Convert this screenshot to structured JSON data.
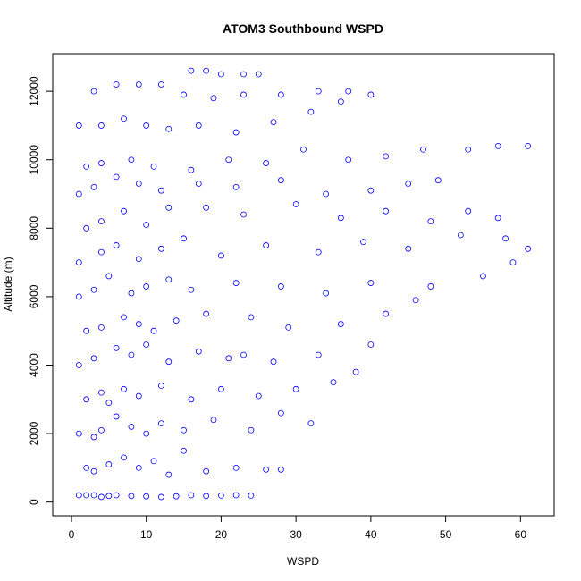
{
  "chart_data": {
    "type": "scatter",
    "title": "ATOM3 Southbound WSPD",
    "xlabel": "WSPD",
    "ylabel": "Altitude (m)",
    "xlim": [
      -2.5,
      64.5
    ],
    "ylim": [
      -400,
      13100
    ],
    "xticks": [
      0,
      10,
      20,
      30,
      40,
      50,
      60
    ],
    "yticks": [
      0,
      2000,
      4000,
      6000,
      8000,
      10000,
      12000
    ],
    "grid": false,
    "marker": "open-circle",
    "color": "#0000ff",
    "series": [
      {
        "values_note": "",
        "points": [
          [
            1,
            200
          ],
          [
            2,
            200
          ],
          [
            3,
            200
          ],
          [
            4,
            150
          ],
          [
            5,
            180
          ],
          [
            6,
            200
          ],
          [
            8,
            180
          ],
          [
            10,
            170
          ],
          [
            12,
            150
          ],
          [
            14,
            170
          ],
          [
            16,
            200
          ],
          [
            18,
            180
          ],
          [
            20,
            190
          ],
          [
            22,
            200
          ],
          [
            24,
            190
          ],
          [
            2,
            1000
          ],
          [
            3,
            900
          ],
          [
            5,
            1100
          ],
          [
            7,
            1300
          ],
          [
            9,
            1000
          ],
          [
            11,
            1200
          ],
          [
            13,
            800
          ],
          [
            15,
            1500
          ],
          [
            18,
            900
          ],
          [
            22,
            1000
          ],
          [
            26,
            950
          ],
          [
            28,
            950
          ],
          [
            1,
            2000
          ],
          [
            3,
            1900
          ],
          [
            4,
            2100
          ],
          [
            6,
            2500
          ],
          [
            8,
            2200
          ],
          [
            10,
            2000
          ],
          [
            12,
            2300
          ],
          [
            15,
            2100
          ],
          [
            19,
            2400
          ],
          [
            24,
            2100
          ],
          [
            28,
            2600
          ],
          [
            32,
            2300
          ],
          [
            2,
            3000
          ],
          [
            4,
            3200
          ],
          [
            5,
            2900
          ],
          [
            7,
            3300
          ],
          [
            9,
            3100
          ],
          [
            12,
            3400
          ],
          [
            16,
            3000
          ],
          [
            20,
            3300
          ],
          [
            25,
            3100
          ],
          [
            30,
            3300
          ],
          [
            35,
            3500
          ],
          [
            38,
            3800
          ],
          [
            1,
            4000
          ],
          [
            3,
            4200
          ],
          [
            6,
            4500
          ],
          [
            8,
            4300
          ],
          [
            10,
            4600
          ],
          [
            13,
            4100
          ],
          [
            17,
            4400
          ],
          [
            21,
            4200
          ],
          [
            23,
            4300
          ],
          [
            27,
            4100
          ],
          [
            33,
            4300
          ],
          [
            40,
            4600
          ],
          [
            2,
            5000
          ],
          [
            4,
            5100
          ],
          [
            7,
            5400
          ],
          [
            9,
            5200
          ],
          [
            11,
            5000
          ],
          [
            14,
            5300
          ],
          [
            18,
            5500
          ],
          [
            24,
            5400
          ],
          [
            29,
            5100
          ],
          [
            36,
            5200
          ],
          [
            42,
            5500
          ],
          [
            46,
            5900
          ],
          [
            1,
            6000
          ],
          [
            3,
            6200
          ],
          [
            5,
            6600
          ],
          [
            8,
            6100
          ],
          [
            10,
            6300
          ],
          [
            13,
            6500
          ],
          [
            16,
            6200
          ],
          [
            22,
            6400
          ],
          [
            28,
            6300
          ],
          [
            34,
            6100
          ],
          [
            40,
            6400
          ],
          [
            48,
            6300
          ],
          [
            55,
            6600
          ],
          [
            59,
            7000
          ],
          [
            1,
            7000
          ],
          [
            4,
            7300
          ],
          [
            6,
            7500
          ],
          [
            9,
            7100
          ],
          [
            12,
            7400
          ],
          [
            15,
            7700
          ],
          [
            20,
            7200
          ],
          [
            26,
            7500
          ],
          [
            33,
            7300
          ],
          [
            39,
            7600
          ],
          [
            45,
            7400
          ],
          [
            52,
            7800
          ],
          [
            58,
            7700
          ],
          [
            61,
            7400
          ],
          [
            2,
            8000
          ],
          [
            4,
            8200
          ],
          [
            7,
            8500
          ],
          [
            10,
            8100
          ],
          [
            13,
            8600
          ],
          [
            18,
            8600
          ],
          [
            23,
            8400
          ],
          [
            30,
            8700
          ],
          [
            36,
            8300
          ],
          [
            42,
            8500
          ],
          [
            48,
            8200
          ],
          [
            53,
            8500
          ],
          [
            57,
            8300
          ],
          [
            1,
            9000
          ],
          [
            3,
            9200
          ],
          [
            6,
            9500
          ],
          [
            9,
            9300
          ],
          [
            12,
            9100
          ],
          [
            17,
            9300
          ],
          [
            22,
            9200
          ],
          [
            28,
            9400
          ],
          [
            34,
            9000
          ],
          [
            40,
            9100
          ],
          [
            45,
            9300
          ],
          [
            49,
            9400
          ],
          [
            2,
            9800
          ],
          [
            4,
            9900
          ],
          [
            8,
            10000
          ],
          [
            11,
            9800
          ],
          [
            16,
            9700
          ],
          [
            21,
            10000
          ],
          [
            26,
            9900
          ],
          [
            31,
            10300
          ],
          [
            37,
            10000
          ],
          [
            42,
            10100
          ],
          [
            47,
            10300
          ],
          [
            53,
            10300
          ],
          [
            57,
            10400
          ],
          [
            61,
            10400
          ],
          [
            1,
            11000
          ],
          [
            4,
            11000
          ],
          [
            7,
            11200
          ],
          [
            10,
            11000
          ],
          [
            13,
            10900
          ],
          [
            17,
            11000
          ],
          [
            22,
            10800
          ],
          [
            27,
            11100
          ],
          [
            32,
            11400
          ],
          [
            36,
            11700
          ],
          [
            3,
            12000
          ],
          [
            6,
            12200
          ],
          [
            9,
            12200
          ],
          [
            12,
            12200
          ],
          [
            15,
            11900
          ],
          [
            19,
            11800
          ],
          [
            23,
            11900
          ],
          [
            28,
            11900
          ],
          [
            33,
            12000
          ],
          [
            37,
            12000
          ],
          [
            40,
            11900
          ],
          [
            16,
            12600
          ],
          [
            18,
            12600
          ],
          [
            20,
            12500
          ],
          [
            23,
            12500
          ],
          [
            25,
            12500
          ]
        ]
      }
    ]
  }
}
